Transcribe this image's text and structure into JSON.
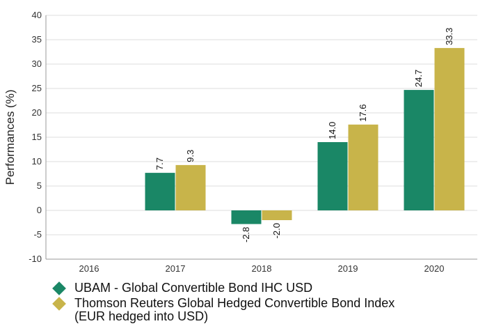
{
  "chart_data": {
    "type": "bar",
    "ylabel": "Performances (%)",
    "xlabel": "",
    "title": "",
    "ylim": [
      -10,
      40
    ],
    "yticks": [
      -10,
      -5,
      0,
      5,
      10,
      15,
      20,
      25,
      30,
      35,
      40
    ],
    "grid": "horizontal",
    "legend_placement": "bottom",
    "categories": [
      "2016",
      "2017",
      "2018",
      "2019",
      "2020"
    ],
    "series": [
      {
        "name": "UBAM - Global Convertible Bond IHC USD",
        "color": "#1a8766",
        "values": [
          null,
          7.7,
          -2.8,
          14.0,
          24.7
        ],
        "labels": [
          "",
          "7.7",
          "-2.8",
          "14.0",
          "24.7"
        ]
      },
      {
        "name": "Thomson Reuters Global Hedged Convertible Bond Index\n(EUR hedged into USD)",
        "color": "#c8b44a",
        "values": [
          null,
          9.3,
          -2.0,
          17.6,
          33.3
        ],
        "labels": [
          "",
          "9.3",
          "-2.0",
          "17.6",
          "33.3"
        ]
      }
    ]
  }
}
